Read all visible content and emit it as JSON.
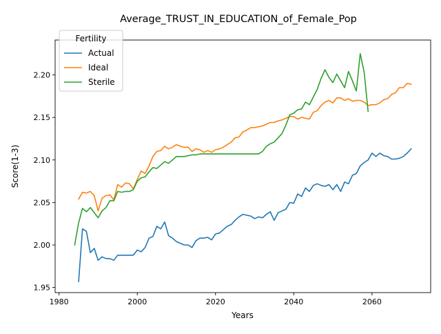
{
  "chart_data": {
    "type": "line",
    "title": "Average_TRUST_IN_EDUCATION_of_Female_Pop",
    "xlabel": "Years",
    "ylabel": "Score(1-3)",
    "xlim": [
      1979,
      2075
    ],
    "ylim": [
      1.944,
      2.241
    ],
    "xticks": [
      1980,
      2000,
      2020,
      2040,
      2060
    ],
    "yticks": [
      1.95,
      2.0,
      2.05,
      2.1,
      2.15,
      2.2
    ],
    "ytick_labels": [
      "1.95",
      "2.00",
      "2.05",
      "2.10",
      "2.15",
      "2.20"
    ],
    "grid": false,
    "legend": {
      "title": "Fertility",
      "placement": "top-left"
    },
    "series": [
      {
        "name": "Actual",
        "color": "#1f77b4",
        "x": [
          1985,
          1986,
          1987,
          1988,
          1989,
          1990,
          1991,
          1992,
          1993,
          1994,
          1995,
          1996,
          1997,
          1998,
          1999,
          2000,
          2001,
          2002,
          2003,
          2004,
          2005,
          2006,
          2007,
          2008,
          2009,
          2010,
          2011,
          2012,
          2013,
          2014,
          2015,
          2016,
          2017,
          2018,
          2019,
          2020,
          2021,
          2022,
          2023,
          2024,
          2025,
          2026,
          2027,
          2028,
          2029,
          2030,
          2031,
          2032,
          2033,
          2034,
          2035,
          2036,
          2037,
          2038,
          2039,
          2040,
          2041,
          2042,
          2043,
          2044,
          2045,
          2046,
          2047,
          2048,
          2049,
          2050,
          2051,
          2052,
          2053,
          2054,
          2055,
          2056,
          2057,
          2058,
          2059,
          2060,
          2061,
          2062,
          2063,
          2064,
          2065,
          2066,
          2067,
          2068,
          2069,
          2070
        ],
        "y": [
          1.957,
          2.019,
          2.016,
          1.991,
          1.996,
          1.982,
          1.986,
          1.984,
          1.984,
          1.982,
          1.988,
          1.988,
          1.988,
          1.988,
          1.988,
          1.994,
          1.992,
          1.997,
          2.008,
          2.01,
          2.022,
          2.019,
          2.027,
          2.011,
          2.008,
          2.004,
          2.002,
          2.0,
          2.0,
          1.997,
          2.005,
          2.008,
          2.008,
          2.009,
          2.006,
          2.013,
          2.014,
          2.018,
          2.022,
          2.024,
          2.029,
          2.033,
          2.036,
          2.035,
          2.034,
          2.031,
          2.033,
          2.032,
          2.036,
          2.039,
          2.029,
          2.038,
          2.04,
          2.042,
          2.05,
          2.049,
          2.06,
          2.057,
          2.067,
          2.063,
          2.07,
          2.072,
          2.07,
          2.069,
          2.071,
          2.065,
          2.071,
          2.063,
          2.074,
          2.072,
          2.082,
          2.084,
          2.093,
          2.097,
          2.1,
          2.108,
          2.104,
          2.108,
          2.105,
          2.104,
          2.101,
          2.101,
          2.102,
          2.104,
          2.108,
          2.113
        ]
      },
      {
        "name": "Ideal",
        "color": "#ff7f0e",
        "x": [
          1985,
          1986,
          1987,
          1988,
          1989,
          1990,
          1991,
          1992,
          1993,
          1994,
          1995,
          1996,
          1997,
          1998,
          1999,
          2000,
          2001,
          2002,
          2003,
          2004,
          2005,
          2006,
          2007,
          2008,
          2009,
          2010,
          2011,
          2012,
          2013,
          2014,
          2015,
          2016,
          2017,
          2018,
          2019,
          2020,
          2021,
          2022,
          2023,
          2024,
          2025,
          2026,
          2027,
          2028,
          2029,
          2030,
          2031,
          2032,
          2033,
          2034,
          2035,
          2036,
          2037,
          2038,
          2039,
          2040,
          2041,
          2042,
          2043,
          2044,
          2045,
          2046,
          2047,
          2048,
          2049,
          2050,
          2051,
          2052,
          2053,
          2054,
          2055,
          2056,
          2057,
          2058,
          2059,
          2060,
          2061,
          2062,
          2063,
          2064,
          2065,
          2066,
          2067,
          2068,
          2069,
          2070
        ],
        "y": [
          2.054,
          2.062,
          2.061,
          2.063,
          2.058,
          2.04,
          2.055,
          2.058,
          2.059,
          2.053,
          2.071,
          2.068,
          2.073,
          2.072,
          2.066,
          2.077,
          2.087,
          2.084,
          2.093,
          2.104,
          2.11,
          2.111,
          2.116,
          2.113,
          2.115,
          2.118,
          2.116,
          2.115,
          2.115,
          2.11,
          2.113,
          2.112,
          2.109,
          2.111,
          2.109,
          2.112,
          2.113,
          2.115,
          2.118,
          2.121,
          2.126,
          2.127,
          2.133,
          2.135,
          2.138,
          2.138,
          2.139,
          2.14,
          2.142,
          2.144,
          2.144,
          2.146,
          2.147,
          2.149,
          2.151,
          2.151,
          2.148,
          2.15,
          2.149,
          2.148,
          2.156,
          2.158,
          2.164,
          2.168,
          2.17,
          2.167,
          2.173,
          2.173,
          2.17,
          2.172,
          2.169,
          2.17,
          2.17,
          2.168,
          2.164,
          2.165,
          2.165,
          2.167,
          2.171,
          2.172,
          2.177,
          2.179,
          2.185,
          2.185,
          2.19,
          2.189
        ]
      },
      {
        "name": "Sterile",
        "color": "#2ca02c",
        "x": [
          1984,
          1985,
          1986,
          1987,
          1988,
          1989,
          1990,
          1991,
          1992,
          1993,
          1994,
          1995,
          1996,
          1997,
          1998,
          1999,
          2000,
          2001,
          2002,
          2003,
          2004,
          2005,
          2006,
          2007,
          2008,
          2009,
          2010,
          2011,
          2012,
          2013,
          2014,
          2015,
          2016,
          2017,
          2018,
          2019,
          2020,
          2021,
          2022,
          2023,
          2024,
          2025,
          2026,
          2027,
          2028,
          2029,
          2030,
          2031,
          2032,
          2033,
          2034,
          2035,
          2036,
          2037,
          2038,
          2039,
          2040,
          2041,
          2042,
          2043,
          2044,
          2045,
          2046,
          2047,
          2048,
          2049,
          2050,
          2051,
          2052,
          2053,
          2054,
          2055,
          2056,
          2057,
          2058,
          2059
        ],
        "y": [
          2.0,
          2.026,
          2.043,
          2.039,
          2.044,
          2.038,
          2.032,
          2.04,
          2.044,
          2.052,
          2.052,
          2.063,
          2.062,
          2.063,
          2.063,
          2.065,
          2.075,
          2.079,
          2.08,
          2.086,
          2.091,
          2.09,
          2.094,
          2.098,
          2.096,
          2.1,
          2.104,
          2.104,
          2.104,
          2.105,
          2.106,
          2.106,
          2.107,
          2.107,
          2.107,
          2.107,
          2.107,
          2.107,
          2.107,
          2.107,
          2.107,
          2.107,
          2.107,
          2.107,
          2.107,
          2.107,
          2.107,
          2.107,
          2.11,
          2.116,
          2.119,
          2.121,
          2.126,
          2.131,
          2.141,
          2.153,
          2.155,
          2.159,
          2.16,
          2.168,
          2.165,
          2.174,
          2.183,
          2.196,
          2.206,
          2.197,
          2.191,
          2.201,
          2.193,
          2.185,
          2.204,
          2.193,
          2.181,
          2.225,
          2.203,
          2.157
        ]
      }
    ]
  }
}
